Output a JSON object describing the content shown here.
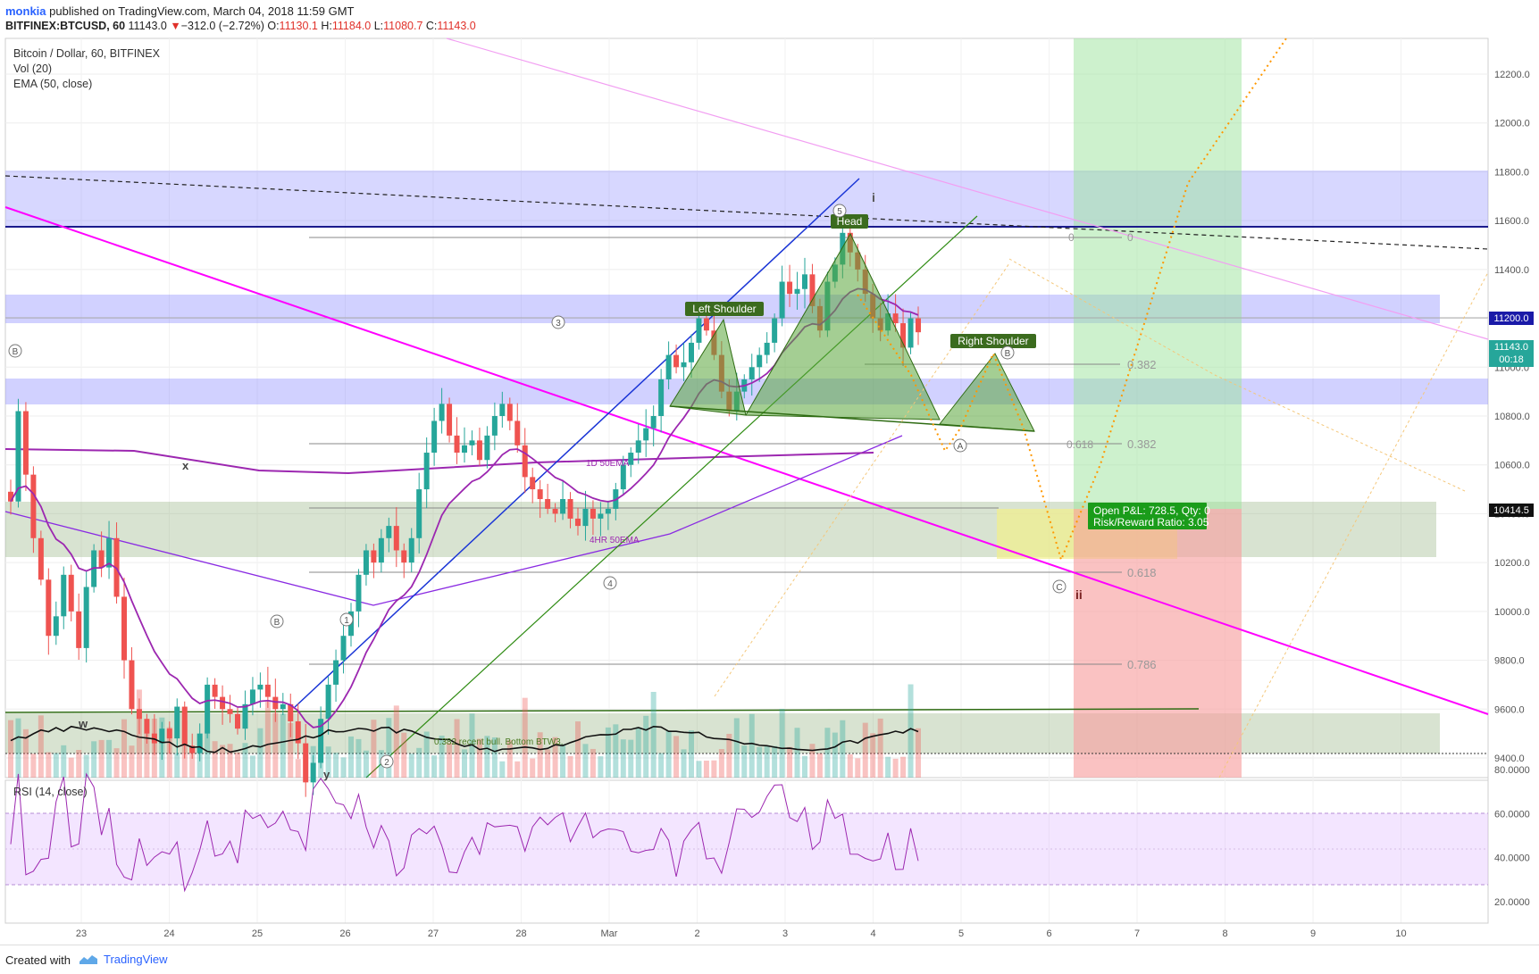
{
  "header": {
    "author": "monkia",
    "published_text": "published on TradingView.com, March 04, 2018 11:59 GMT",
    "symbol": "BITFINEX:BTCUSD, 60",
    "price": "11143.0",
    "change_arrow": "▼",
    "change": "−312.0 (−2.72%)",
    "o_label": "O:",
    "o_value": "11130.1",
    "h_label": "H:",
    "h_value": "11184.0",
    "l_label": "L:",
    "l_value": "11080.7",
    "c_label": "C:",
    "c_value": "11143.0"
  },
  "legend": {
    "title": "Bitcoin / Dollar, 60, BITFINEX",
    "vol": "Vol (20)",
    "ema": "EMA (50, close)",
    "rsi": "RSI (14, close)"
  },
  "footer": {
    "created_with": "Created with",
    "brand": "TradingView"
  },
  "chart_data": {
    "type": "candlestick",
    "symbol": "BITFINEX:BTCUSD",
    "interval": "60",
    "price_axis_ticks": [
      "12200.0",
      "12000.0",
      "11800.0",
      "11600.0",
      "11400.0",
      "11200.0",
      "11000.0",
      "10800.0",
      "10600.0",
      "10400.0",
      "10200.0",
      "10000.0",
      "9800.0",
      "9600.0",
      "9400.0"
    ],
    "rsi_axis_ticks": [
      "80.0000",
      "60.0000",
      "40.0000",
      "20.0000"
    ],
    "time_axis_ticks": [
      "23",
      "24",
      "25",
      "26",
      "27",
      "28",
      "Mar",
      "2",
      "3",
      "4",
      "5",
      "6",
      "7",
      "8",
      "9",
      "10"
    ],
    "price_labels": {
      "level_11200": "11200.0",
      "last_price": "11143.0",
      "countdown": "00:18",
      "entry": "10414.5"
    },
    "colors": {
      "up": "#26a69a",
      "down": "#ef5350",
      "ema": "#9c27b0",
      "trendline_magenta": "#ff00ff",
      "zone_blue": "#7b7bff",
      "zone_green": "#a5c98b",
      "target_green": "#9be39b",
      "stop_red": "#f7a1a1",
      "projection": "#ff9800",
      "pattern_fill": "#7cbf5a"
    },
    "fib_labels": [
      "0",
      "0",
      "0.382",
      "0.618",
      "0.382",
      "0.618",
      "0.786"
    ],
    "pattern_labels": {
      "head": "Head",
      "left_shoulder": "Left Shoulder",
      "right_shoulder": "Right Shoulder"
    },
    "wave_labels": [
      "B",
      "B",
      "1",
      "2",
      "3",
      "4",
      "5",
      "A",
      "B",
      "C",
      "i",
      "ii",
      "x",
      "w",
      "y"
    ],
    "text_annotations": {
      "ema_1d": "1D 50EMA",
      "ema_4hr": "4HR 50EMA",
      "bottom_note": "0.382 recent bull. Bottom BTW3."
    },
    "position": {
      "open_pl": "Open P&L: 728.5, Qty: 0",
      "risk_reward": "Risk/Reward Ratio: 3.05"
    },
    "close_series": [
      10450,
      10820,
      10560,
      10300,
      10130,
      9900,
      9980,
      10150,
      10000,
      9850,
      10100,
      10250,
      10180,
      10300,
      10060,
      9800,
      9600,
      9560,
      9500,
      9460,
      9520,
      9480,
      9610,
      9450,
      9420,
      9500,
      9700,
      9650,
      9600,
      9580,
      9520,
      9620,
      9680,
      9700,
      9650,
      9600,
      9620,
      9550,
      9460,
      9300,
      9380,
      9560,
      9700,
      9800,
      9900,
      10000,
      10150,
      10250,
      10200,
      10300,
      10350,
      10250,
      10200,
      10300,
      10500,
      10650,
      10780,
      10850,
      10720,
      10650,
      10680,
      10700,
      10620,
      10720,
      10800,
      10850,
      10780,
      10680,
      10550,
      10500,
      10460,
      10420,
      10400,
      10460,
      10380,
      10350,
      10420,
      10380,
      10400,
      10420,
      10500,
      10600,
      10650,
      10700,
      10750,
      10800,
      10950,
      11050,
      11000,
      11020,
      11100,
      11200,
      11150,
      11050,
      10900,
      10820,
      10900,
      10950,
      11000,
      11050,
      11100,
      11200,
      11350,
      11300,
      11320,
      11380,
      11250,
      11150,
      11350,
      11420,
      11550,
      11470,
      11400,
      11300,
      11200,
      11150,
      11220,
      11180,
      11080,
      11200,
      11143
    ]
  }
}
